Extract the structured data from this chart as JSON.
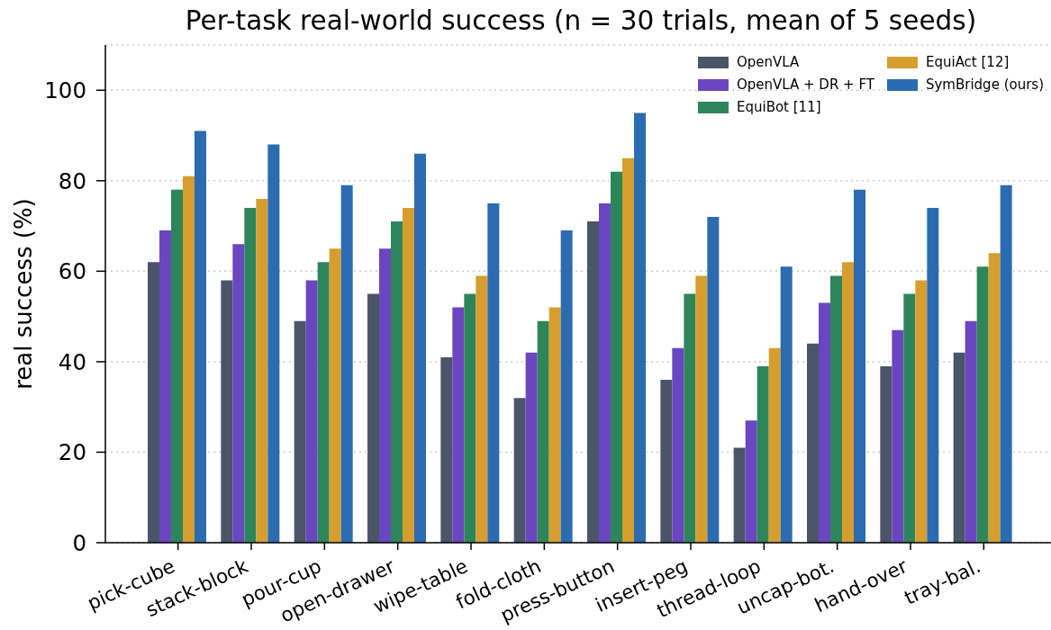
{
  "chart_data": {
    "type": "bar",
    "title": "Per-task real-world success (n = 30 trials, mean of 5 seeds)",
    "ylabel": "real success (%)",
    "categories": [
      "pick-cube",
      "stack-block",
      "pour-cup",
      "open-drawer",
      "wipe-table",
      "fold-cloth",
      "press-button",
      "insert-peg",
      "thread-loop",
      "uncap-bot.",
      "hand-over",
      "tray-bal."
    ],
    "series": [
      {
        "name": "OpenVLA",
        "color": "#4a5568",
        "values": [
          62,
          58,
          49,
          55,
          41,
          32,
          71,
          36,
          21,
          44,
          39,
          42
        ]
      },
      {
        "name": "OpenVLA + DR + FT",
        "color": "#6b46c1",
        "values": [
          69,
          66,
          58,
          65,
          52,
          42,
          75,
          43,
          27,
          53,
          47,
          49
        ]
      },
      {
        "name": "EquiBot [11]",
        "color": "#2f855a",
        "values": [
          78,
          74,
          62,
          71,
          55,
          49,
          82,
          55,
          39,
          59,
          55,
          61
        ]
      },
      {
        "name": "EquiAct [12]",
        "color": "#d69e2e",
        "values": [
          81,
          76,
          65,
          74,
          59,
          52,
          85,
          59,
          43,
          62,
          58,
          64
        ]
      },
      {
        "name": "SymBridge (ours)",
        "color": "#2b6cb0",
        "values": [
          91,
          88,
          79,
          86,
          75,
          69,
          95,
          72,
          61,
          78,
          74,
          79
        ]
      }
    ],
    "ylim": [
      0,
      110
    ],
    "yticks": [
      0,
      20,
      40,
      60,
      80,
      100
    ],
    "grid": "y",
    "legend": "top right"
  }
}
